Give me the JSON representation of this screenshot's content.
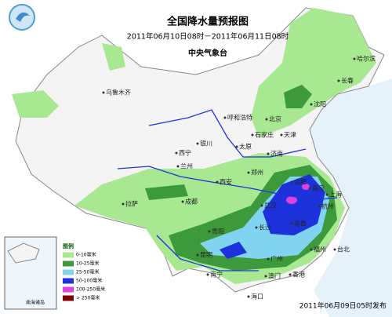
{
  "header": {
    "title": "全国降水量预报图",
    "period": "2011年06月10日08时－2011年06月11日08时",
    "issuer": "中央气象台"
  },
  "cities": [
    "乌鲁木齐",
    "哈尔滨",
    "长春",
    "沈阳",
    "呼和浩特",
    "北京",
    "天津",
    "石家庄",
    "银川",
    "太原",
    "济南",
    "西宁",
    "兰州",
    "郑州",
    "西安",
    "拉萨",
    "成都",
    "武汉",
    "合肥",
    "南京",
    "上海",
    "杭州",
    "南昌",
    "长沙",
    "福州",
    "贵阳",
    "昆明",
    "南宁",
    "广州",
    "香港",
    "澳门",
    "台北",
    "海口"
  ],
  "legend": {
    "title": "图例",
    "items": [
      {
        "label": "0-10毫米",
        "color": "#a8e890"
      },
      {
        "label": "10-25毫米",
        "color": "#3c9a3c"
      },
      {
        "label": "25-50毫米",
        "color": "#80d4f0"
      },
      {
        "label": "50-100毫米",
        "color": "#1e32dc"
      },
      {
        "label": "100-250毫米",
        "color": "#e040e0"
      },
      {
        "label": "> 250毫米",
        "color": "#800000"
      }
    ]
  },
  "inset": {
    "label": "南海诸岛"
  },
  "footer": {
    "issued": "2011年06月09日05时发布"
  }
}
